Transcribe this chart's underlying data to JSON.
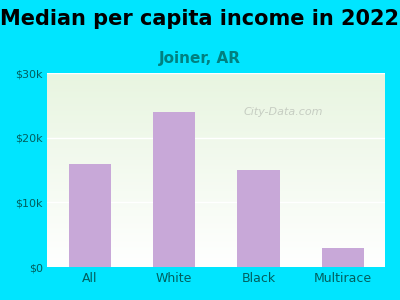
{
  "title": "Median per capita income in 2022",
  "subtitle": "Joiner, AR",
  "categories": [
    "All",
    "White",
    "Black",
    "Multirace"
  ],
  "values": [
    16000,
    24000,
    15000,
    3000
  ],
  "bar_color": "#c8a8d8",
  "background_outer": "#00e5ff",
  "background_inner_top": "#e8f5e0",
  "background_inner_bottom": "#ffffff",
  "title_fontsize": 15,
  "subtitle_fontsize": 11,
  "subtitle_color": "#008080",
  "tick_color": "#005f5f",
  "ylim": [
    0,
    30000
  ],
  "yticks": [
    0,
    10000,
    20000,
    30000
  ],
  "ytick_labels": [
    "$0",
    "$10k",
    "$20k",
    "$30k"
  ],
  "watermark": "City-Data.com"
}
